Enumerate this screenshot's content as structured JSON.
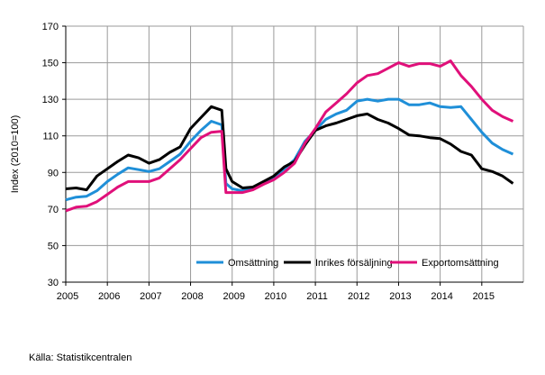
{
  "chart_data": {
    "type": "line",
    "ylabel": "Index (2010=100)",
    "xlabel": "",
    "ylim": [
      30,
      170
    ],
    "yticks": [
      30,
      50,
      70,
      90,
      110,
      130,
      150,
      170
    ],
    "xlim": [
      2005,
      2016
    ],
    "xticks": [
      "2005",
      "2006",
      "2007",
      "2008",
      "2009",
      "2010",
      "2011",
      "2012",
      "2013",
      "2014",
      "2015"
    ],
    "grid": true,
    "legend_position": "bottom-right inside",
    "x": [
      2005.0,
      2005.25,
      2005.5,
      2005.75,
      2006.0,
      2006.25,
      2006.5,
      2006.75,
      2007.0,
      2007.25,
      2007.5,
      2007.75,
      2008.0,
      2008.25,
      2008.5,
      2008.75,
      2008.85,
      2009.0,
      2009.25,
      2009.5,
      2009.75,
      2010.0,
      2010.25,
      2010.5,
      2010.75,
      2011.0,
      2011.25,
      2011.5,
      2011.75,
      2012.0,
      2012.25,
      2012.5,
      2012.75,
      2013.0,
      2013.25,
      2013.5,
      2013.75,
      2014.0,
      2014.25,
      2014.5,
      2014.75,
      2015.0,
      2015.25,
      2015.5,
      2015.75
    ],
    "series": [
      {
        "name": "Omsättning",
        "color": "#1f8fd8",
        "values": [
          75,
          76.5,
          77,
          80,
          85,
          89,
          92.5,
          91.5,
          90.5,
          92,
          96,
          100,
          107,
          113,
          118,
          116,
          84,
          81,
          80,
          81.5,
          84,
          87,
          92,
          97,
          107,
          113,
          119,
          122,
          124,
          129,
          130,
          129,
          130,
          130,
          127,
          127,
          128,
          126,
          125.5,
          126,
          119,
          112,
          106,
          102.5,
          100
        ]
      },
      {
        "name": "Inrikes försäljning",
        "color": "#000000",
        "values": [
          81,
          81.5,
          80.5,
          88,
          92,
          96,
          99.5,
          98,
          95,
          97,
          101,
          104,
          114,
          120,
          126,
          124,
          92,
          85,
          81.5,
          82,
          85,
          88,
          93,
          96,
          105,
          113,
          115.5,
          117,
          119,
          121,
          122,
          119,
          117,
          114,
          110.5,
          110,
          109,
          108.5,
          105.5,
          101.5,
          99.5,
          92,
          90.5,
          88,
          84
        ]
      },
      {
        "name": "Exportomsättning",
        "color": "#e0107a",
        "values": [
          69,
          71,
          71.5,
          74,
          78,
          82,
          85,
          85,
          85,
          87,
          92,
          97,
          103,
          109,
          112,
          112.5,
          79,
          79,
          79,
          80.5,
          83.5,
          86,
          90,
          95,
          106,
          114,
          123,
          128,
          133,
          139,
          143,
          144,
          147,
          150,
          148,
          149.5,
          149.5,
          148,
          151,
          143,
          137,
          130,
          124,
          120.5,
          118
        ]
      }
    ]
  },
  "source": "Källa: Statistikcentralen"
}
